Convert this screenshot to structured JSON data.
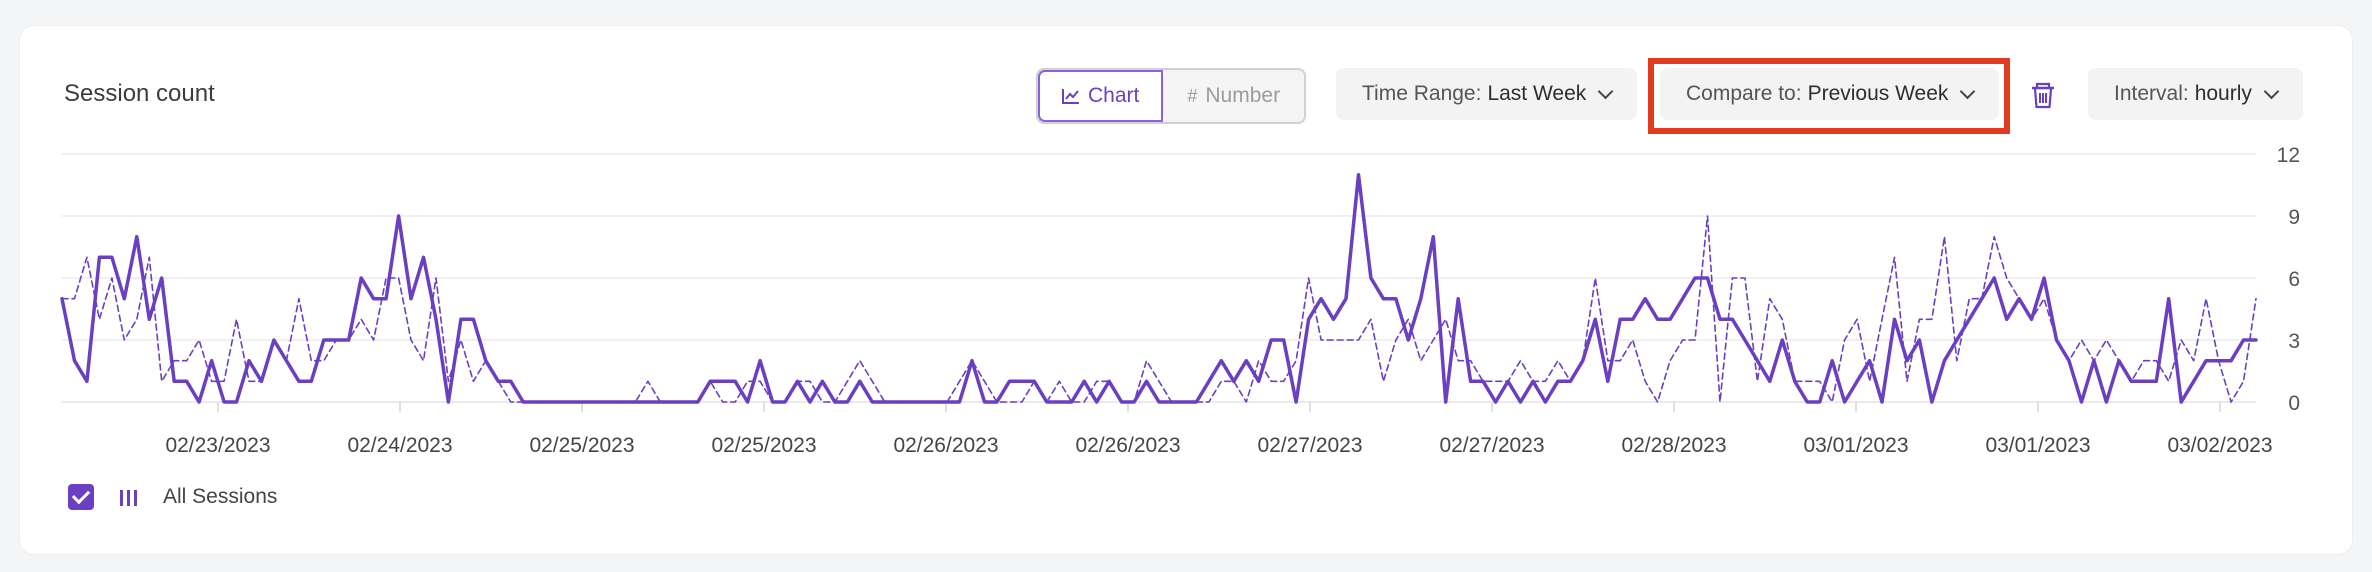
{
  "panel": {
    "title": "Session count",
    "view_toggle": {
      "chart_label": "Chart",
      "number_label": "Number",
      "active": "Chart"
    },
    "time_range": {
      "label": "Time Range:",
      "value": "Last Week"
    },
    "compare_to": {
      "label": "Compare to:",
      "value": "Previous Week"
    },
    "interval": {
      "label": "Interval:",
      "value": "hourly"
    },
    "legend": {
      "label": "All Sessions",
      "checked": true
    },
    "icons": {
      "chart": "line-chart-icon",
      "number": "hash-icon",
      "trash": "trash-icon",
      "chevron": "chevron-down-icon"
    },
    "colors": {
      "accent": "#6b3fc1",
      "highlight": "#e33b22"
    }
  },
  "chart_data": {
    "type": "line",
    "x_tick_labels": [
      "02/23/2023",
      "02/24/2023",
      "02/25/2023",
      "02/25/2023",
      "02/26/2023",
      "02/26/2023",
      "02/27/2023",
      "02/27/2023",
      "02/28/2023",
      "03/01/2023",
      "03/01/2023",
      "03/02/2023"
    ],
    "y_ticks": [
      0,
      3,
      6,
      9,
      12
    ],
    "ylim": [
      0,
      12
    ],
    "grid": true,
    "y_axis_side": "right",
    "series": [
      {
        "name": "All Sessions",
        "style": "solid",
        "values": [
          5,
          2,
          1,
          7,
          7,
          5,
          8,
          4,
          6,
          1,
          1,
          0,
          2,
          0,
          0,
          2,
          1,
          3,
          2,
          1,
          1,
          3,
          3,
          3,
          6,
          5,
          5,
          9,
          5,
          7,
          4,
          0,
          4,
          4,
          2,
          1,
          1,
          0,
          0,
          0,
          0,
          0,
          0,
          0,
          0,
          0,
          0,
          0,
          0,
          0,
          0,
          0,
          1,
          1,
          1,
          0,
          2,
          0,
          0,
          1,
          0,
          1,
          0,
          0,
          1,
          0,
          0,
          0,
          0,
          0,
          0,
          0,
          0,
          2,
          0,
          0,
          1,
          1,
          1,
          0,
          0,
          0,
          1,
          0,
          1,
          0,
          0,
          1,
          0,
          0,
          0,
          0,
          1,
          2,
          1,
          2,
          1,
          3,
          3,
          0,
          4,
          5,
          4,
          5,
          11,
          6,
          5,
          5,
          3,
          5,
          8,
          0,
          5,
          1,
          1,
          0,
          1,
          0,
          1,
          0,
          1,
          1,
          2,
          4,
          1,
          4,
          4,
          5,
          4,
          4,
          5,
          6,
          6,
          4,
          4,
          3,
          2,
          1,
          3,
          1,
          0,
          0,
          2,
          0,
          1,
          2,
          0,
          4,
          2,
          3,
          0,
          2,
          3,
          4,
          5,
          6,
          4,
          5,
          4,
          6,
          3,
          2,
          0,
          2,
          0,
          2,
          1,
          1,
          1,
          5,
          0,
          1,
          2,
          2,
          2,
          3,
          3
        ]
      },
      {
        "name": "Previous Week",
        "style": "dashed",
        "values": [
          5,
          5,
          7,
          4,
          6,
          3,
          4,
          7,
          1,
          2,
          2,
          3,
          1,
          1,
          4,
          1,
          1,
          3,
          2,
          5,
          2,
          2,
          3,
          3,
          4,
          3,
          6,
          6,
          3,
          2,
          6,
          1,
          3,
          1,
          2,
          1,
          0,
          0,
          0,
          0,
          0,
          0,
          0,
          0,
          0,
          0,
          0,
          1,
          0,
          0,
          0,
          0,
          1,
          0,
          0,
          1,
          1,
          0,
          0,
          1,
          1,
          0,
          0,
          1,
          2,
          1,
          0,
          0,
          0,
          0,
          0,
          0,
          1,
          2,
          1,
          0,
          0,
          0,
          1,
          0,
          1,
          0,
          0,
          1,
          1,
          0,
          0,
          2,
          1,
          0,
          0,
          0,
          0,
          1,
          1,
          0,
          2,
          1,
          1,
          2,
          6,
          3,
          3,
          3,
          3,
          4,
          1,
          3,
          4,
          2,
          3,
          4,
          2,
          2,
          1,
          1,
          1,
          2,
          1,
          1,
          2,
          1,
          2,
          6,
          2,
          2,
          3,
          1,
          0,
          2,
          3,
          3,
          9,
          0,
          6,
          6,
          1,
          5,
          4,
          1,
          1,
          1,
          0,
          3,
          4,
          1,
          4,
          7,
          1,
          4,
          4,
          8,
          2,
          5,
          5,
          8,
          6,
          5,
          4,
          5,
          3,
          2,
          3,
          2,
          3,
          2,
          1,
          2,
          2,
          1,
          3,
          2,
          5,
          2,
          0,
          1,
          5
        ]
      }
    ]
  }
}
